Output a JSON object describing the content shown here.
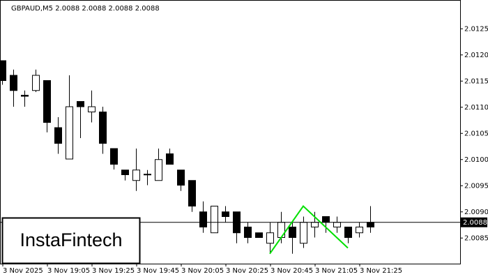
{
  "chart_data": {
    "type": "candlestick",
    "title": "GBPAUD,M5  2.0088 2.0088 2.0088 2.0088",
    "categories": [
      "3 Nov 2025",
      null,
      null,
      null,
      "3 Nov 19:05",
      null,
      null,
      null,
      "3 Nov 19:25",
      null,
      null,
      null,
      "3 Nov 19:45",
      null,
      null,
      null,
      "3 Nov 20:05",
      null,
      null,
      null,
      "3 Nov 20:25",
      null,
      null,
      null,
      "3 Nov 20:45",
      null,
      null,
      null,
      "3 Nov 21:05",
      null,
      null,
      null,
      "3 Nov 21:25",
      null
    ],
    "open": [
      2.01189,
      2.01161,
      2.01123,
      2.01132,
      2.01151,
      2.01061,
      2.01001,
      2.01111,
      2.01091,
      2.01091,
      2.01021,
      2.0098,
      2.0096,
      2.00971,
      2.0096,
      2.01011,
      2.0098,
      2.0096,
      2.009,
      2.0086,
      2.009,
      2.009,
      2.00871,
      2.0086,
      2.0084,
      2.00851,
      2.00871,
      2.0084,
      2.00871,
      2.00891,
      2.00871,
      2.00871,
      2.0086,
      2.0088
    ],
    "high": [
      2.01189,
      2.01172,
      2.01132,
      2.01172,
      2.01151,
      2.01081,
      2.01161,
      2.01111,
      2.01132,
      2.01101,
      2.01021,
      2.0098,
      2.01021,
      2.0098,
      2.01021,
      2.01021,
      2.0098,
      2.0096,
      2.0092,
      2.00911,
      2.00911,
      2.009,
      2.0088,
      2.0086,
      2.0088,
      2.009,
      2.0088,
      2.00891,
      2.009,
      2.00891,
      2.00891,
      2.00871,
      2.0088,
      2.00911
    ],
    "low": [
      2.01143,
      2.01101,
      2.01101,
      2.01129,
      2.01052,
      2.01011,
      2.01001,
      2.01041,
      2.01071,
      2.01011,
      2.00981,
      2.0096,
      2.0094,
      2.00951,
      2.0096,
      2.00991,
      2.0094,
      2.009,
      2.0086,
      2.0086,
      2.0088,
      2.0084,
      2.0084,
      2.00851,
      2.0082,
      2.0084,
      2.0082,
      2.00831,
      2.00851,
      2.0086,
      2.0086,
      2.0084,
      2.00851,
      2.0086
    ],
    "close": [
      2.01151,
      2.01132,
      2.01121,
      2.01161,
      2.01071,
      2.01031,
      2.01101,
      2.01101,
      2.01101,
      2.01031,
      2.00991,
      2.00971,
      2.0098,
      2.00972,
      2.01,
      2.00991,
      2.00951,
      2.00911,
      2.00871,
      2.00911,
      2.00891,
      2.0086,
      2.00851,
      2.00851,
      2.0086,
      2.0088,
      2.00851,
      2.0088,
      2.0088,
      2.0088,
      2.0088,
      2.00851,
      2.00871,
      2.00871
    ],
    "up_color": "#ffffff",
    "down_color": "#000000",
    "ylim": [
      2.00801,
      2.01305
    ],
    "yticks": [
      2.0085,
      {
        "value": 2.009,
        "label": "2.0090"
      },
      2.0095,
      {
        "value": 2.01,
        "label": "2.0100"
      },
      2.0105,
      {
        "value": 2.011,
        "label": "2.0110"
      },
      2.0115,
      {
        "value": 2.012,
        "label": "2.0120"
      },
      2.0125
    ],
    "last_price": 2.0088,
    "pattern": {
      "color": "#00e000",
      "points": [
        {
          "index": 24,
          "value": 2.0082
        },
        {
          "index": 27,
          "value": 2.00911
        },
        {
          "index": 31,
          "value": 2.00831
        }
      ]
    },
    "logo": "InstaFintech"
  }
}
